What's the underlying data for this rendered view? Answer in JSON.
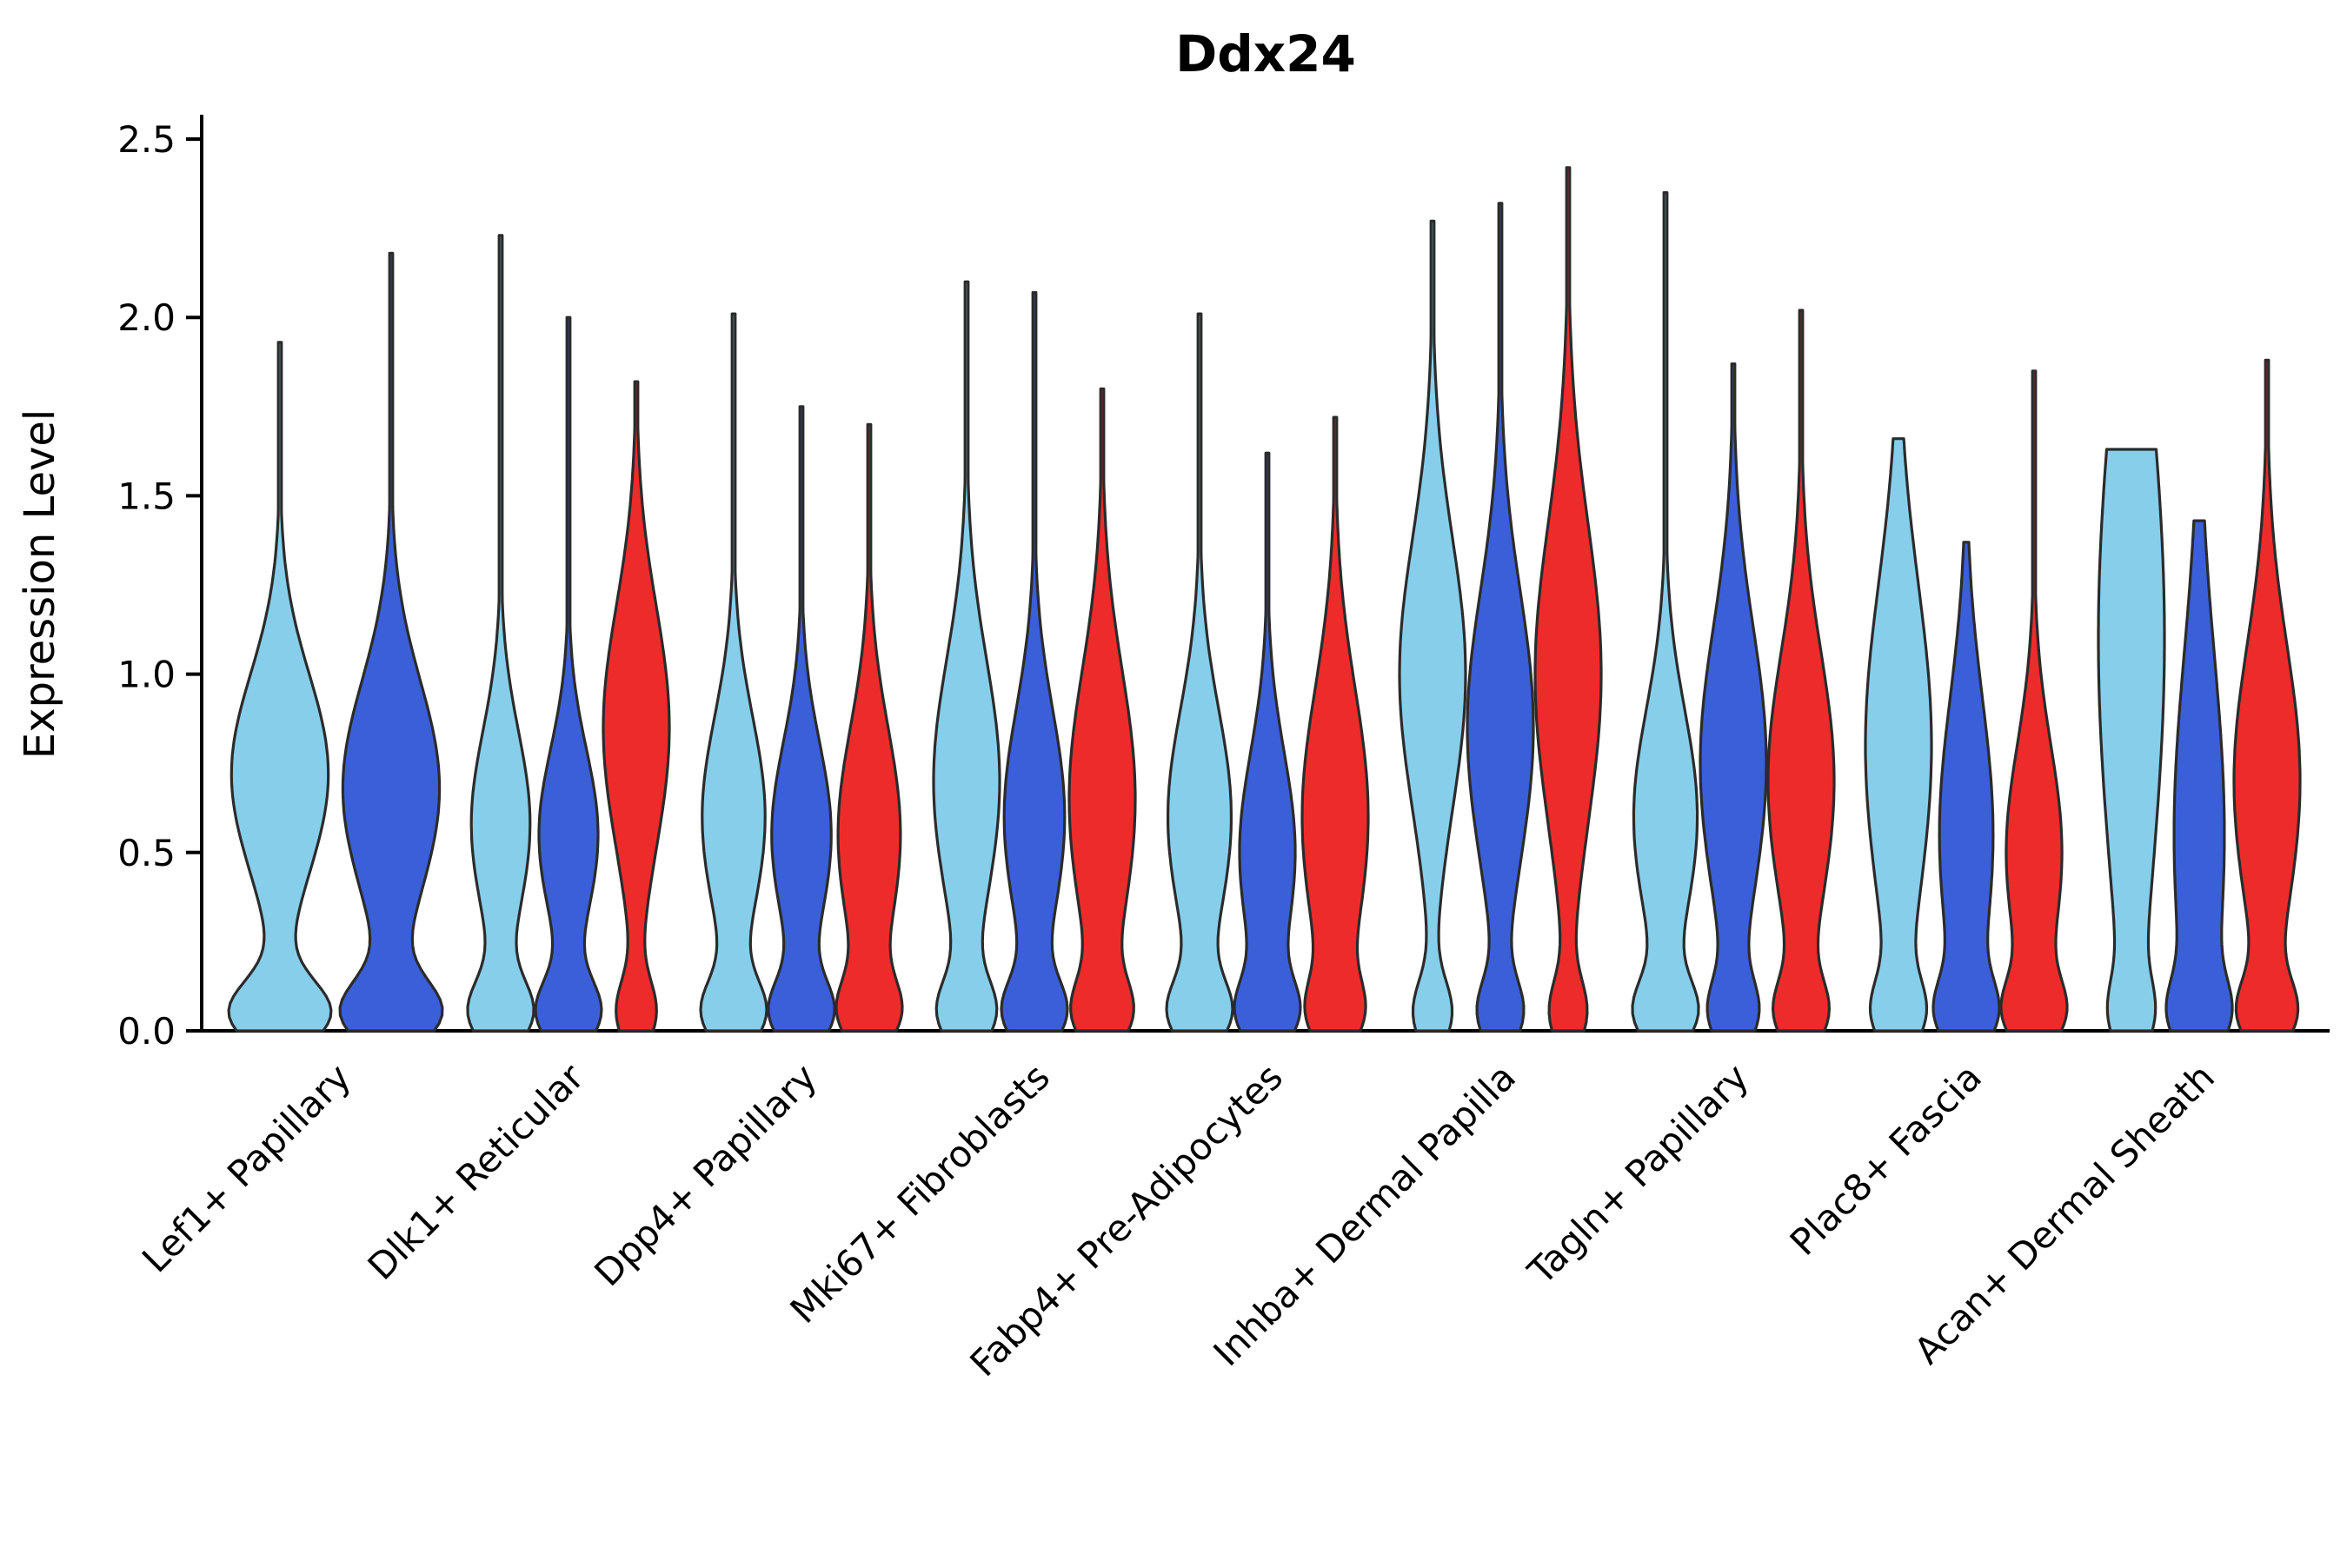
{
  "chart_data": {
    "type": "violin",
    "title": "Ddx24",
    "xlabel": "",
    "ylabel": "Expression Level",
    "ylim": [
      0,
      2.5
    ],
    "yticks": [
      0,
      0.5,
      1.0,
      1.5,
      2.0,
      2.5
    ],
    "grid": false,
    "legend": "none",
    "palette": {
      "lightblue": "#87CEEB",
      "blue": "#3A5FD8",
      "red": "#EE2B2B"
    },
    "edge_color": "#2b2b2b",
    "groups": [
      {
        "label": "Lef1+ Papillary",
        "violins": [
          {
            "color": "lightblue",
            "max": 1.93,
            "peak": 0.72,
            "spread": 0.28,
            "base": 1.0,
            "w": 1.55
          },
          {
            "color": "blue",
            "max": 2.18,
            "peak": 0.68,
            "spread": 0.3,
            "base": 0.95,
            "w": 1.55
          }
        ]
      },
      {
        "label": "Dlk1+ Reticular",
        "violins": [
          {
            "color": "lightblue",
            "max": 2.23,
            "peak": 0.58,
            "spread": 0.26,
            "base": 1.0,
            "w": 1.0
          },
          {
            "color": "blue",
            "max": 2.0,
            "peak": 0.55,
            "spread": 0.24,
            "base": 1.0,
            "w": 1.0
          },
          {
            "color": "red",
            "max": 1.82,
            "peak": 0.85,
            "spread": 0.34,
            "base": 0.55,
            "w": 1.0
          }
        ]
      },
      {
        "label": "Dpp4+ Papillary",
        "violins": [
          {
            "color": "lightblue",
            "max": 2.01,
            "peak": 0.6,
            "spread": 0.28,
            "base": 0.9,
            "w": 1.0
          },
          {
            "color": "blue",
            "max": 1.75,
            "peak": 0.55,
            "spread": 0.26,
            "base": 0.95,
            "w": 1.0
          },
          {
            "color": "red",
            "max": 1.7,
            "peak": 0.55,
            "spread": 0.3,
            "base": 0.8,
            "w": 1.0
          }
        ]
      },
      {
        "label": "Mki67+ Fibroblasts",
        "violins": [
          {
            "color": "lightblue",
            "max": 2.1,
            "peak": 0.7,
            "spread": 0.34,
            "base": 0.75,
            "w": 1.0
          },
          {
            "color": "blue",
            "max": 2.07,
            "peak": 0.6,
            "spread": 0.3,
            "base": 0.9,
            "w": 1.0
          },
          {
            "color": "red",
            "max": 1.8,
            "peak": 0.65,
            "spread": 0.36,
            "base": 0.7,
            "w": 1.0
          }
        ]
      },
      {
        "label": "Fabp4+ Pre-Adipocytes",
        "violins": [
          {
            "color": "lightblue",
            "max": 2.01,
            "peak": 0.6,
            "spread": 0.3,
            "base": 0.85,
            "w": 1.0
          },
          {
            "color": "blue",
            "max": 1.62,
            "peak": 0.5,
            "spread": 0.28,
            "base": 0.9,
            "w": 1.0
          },
          {
            "color": "red",
            "max": 1.72,
            "peak": 0.6,
            "spread": 0.36,
            "base": 0.6,
            "w": 1.0
          }
        ]
      },
      {
        "label": "Inhba+ Dermal Papilla",
        "violins": [
          {
            "color": "lightblue",
            "max": 2.27,
            "peak": 1.0,
            "spread": 0.38,
            "base": 0.55,
            "w": 1.0
          },
          {
            "color": "blue",
            "max": 2.32,
            "peak": 0.85,
            "spread": 0.38,
            "base": 0.6,
            "w": 1.0
          },
          {
            "color": "red",
            "max": 2.42,
            "peak": 1.0,
            "spread": 0.42,
            "base": 0.5,
            "w": 1.0
          }
        ]
      },
      {
        "label": "Tagln+ Papillary",
        "violins": [
          {
            "color": "lightblue",
            "max": 2.35,
            "peak": 0.6,
            "spread": 0.3,
            "base": 0.85,
            "w": 1.0
          },
          {
            "color": "blue",
            "max": 1.87,
            "peak": 0.75,
            "spread": 0.38,
            "base": 0.6,
            "w": 1.0
          },
          {
            "color": "red",
            "max": 2.02,
            "peak": 0.7,
            "spread": 0.36,
            "base": 0.65,
            "w": 1.0
          }
        ]
      },
      {
        "label": "Plac8+ Fascia",
        "violins": [
          {
            "color": "lightblue",
            "max": 1.66,
            "peak": 0.8,
            "spread": 0.45,
            "base": 0.6,
            "w": 1.0
          },
          {
            "color": "blue",
            "max": 1.37,
            "peak": 0.55,
            "spread": 0.38,
            "base": 0.8,
            "w": 1.0
          },
          {
            "color": "red",
            "max": 1.85,
            "peak": 0.5,
            "spread": 0.3,
            "base": 0.85,
            "w": 1.0
          }
        ]
      },
      {
        "label": "Acan+ Dermal Sheath",
        "violins": [
          {
            "color": "lightblue",
            "max": 1.63,
            "peak": 1.1,
            "spread": 0.7,
            "base": 0.4,
            "w": 1.0,
            "flat": true
          },
          {
            "color": "blue",
            "max": 1.43,
            "peak": 0.55,
            "spread": 0.5,
            "base": 0.7,
            "w": 1.0
          },
          {
            "color": "red",
            "max": 1.88,
            "peak": 0.7,
            "spread": 0.38,
            "base": 0.7,
            "w": 1.0
          }
        ]
      }
    ]
  }
}
